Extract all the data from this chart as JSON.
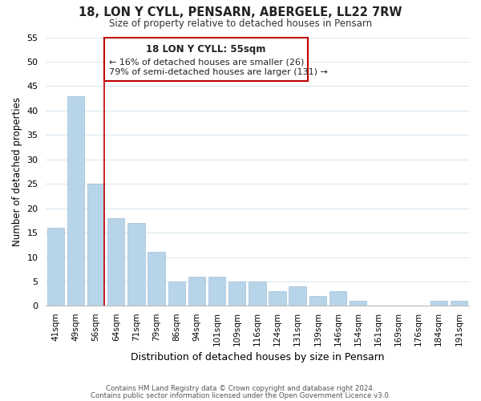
{
  "title": "18, LON Y CYLL, PENSARN, ABERGELE, LL22 7RW",
  "subtitle": "Size of property relative to detached houses in Pensarn",
  "xlabel": "Distribution of detached houses by size in Pensarn",
  "ylabel": "Number of detached properties",
  "bar_labels": [
    "41sqm",
    "49sqm",
    "56sqm",
    "64sqm",
    "71sqm",
    "79sqm",
    "86sqm",
    "94sqm",
    "101sqm",
    "109sqm",
    "116sqm",
    "124sqm",
    "131sqm",
    "139sqm",
    "146sqm",
    "154sqm",
    "161sqm",
    "169sqm",
    "176sqm",
    "184sqm",
    "191sqm"
  ],
  "bar_values": [
    16,
    43,
    25,
    18,
    17,
    11,
    5,
    6,
    6,
    5,
    5,
    3,
    4,
    2,
    3,
    1,
    0,
    0,
    0,
    1,
    1
  ],
  "bar_color": "#b8d4e8",
  "bar_edge_color": "#a0c0d8",
  "highlight_index": 2,
  "highlight_color": "#c00000",
  "ylim": [
    0,
    55
  ],
  "yticks": [
    0,
    5,
    10,
    15,
    20,
    25,
    30,
    35,
    40,
    45,
    50,
    55
  ],
  "annotation_title": "18 LON Y CYLL: 55sqm",
  "annotation_line1": "← 16% of detached houses are smaller (26)",
  "annotation_line2": "79% of semi-detached houses are larger (131) →",
  "footer_line1": "Contains HM Land Registry data © Crown copyright and database right 2024.",
  "footer_line2": "Contains public sector information licensed under the Open Government Licence v3.0.",
  "grid_color": "#d8e8f0",
  "background_color": "#ffffff"
}
